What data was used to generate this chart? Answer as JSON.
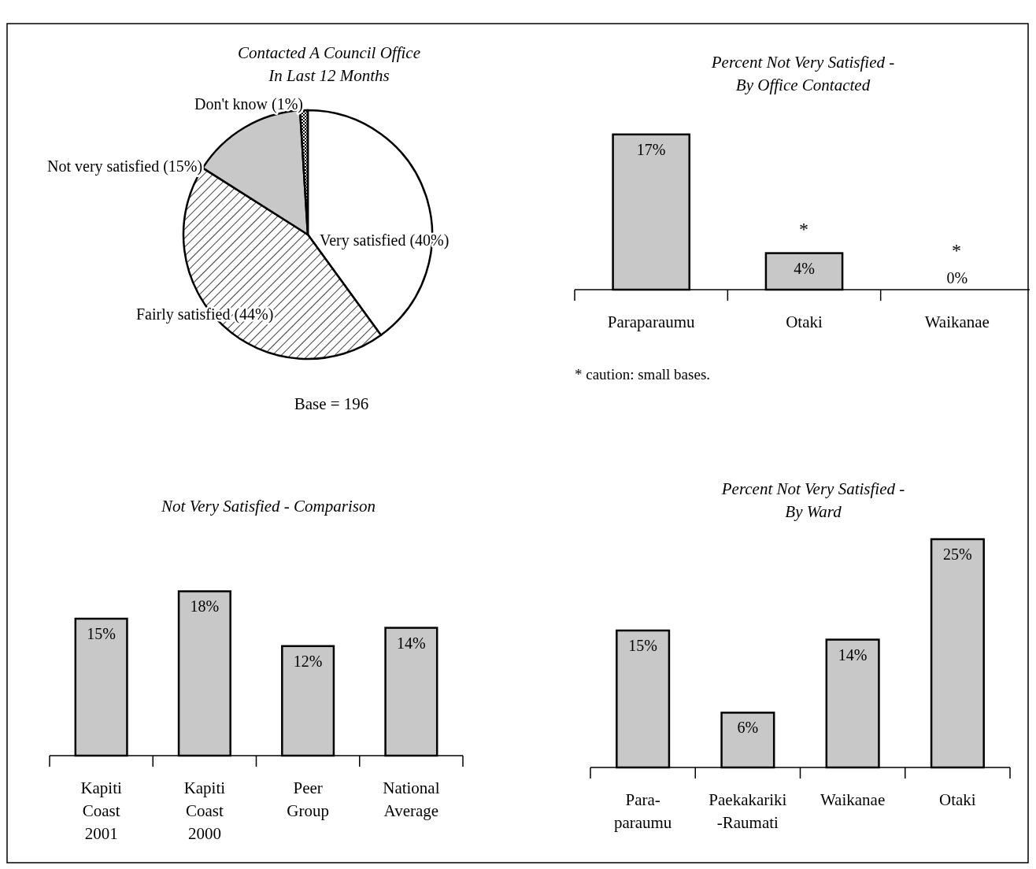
{
  "chart_data": [
    {
      "type": "pie",
      "title": "Contacted A Council Office\nIn Last 12 Months",
      "categories": [
        "Very satisfied",
        "Fairly satisfied",
        "Not very satisfied",
        "Don't know"
      ],
      "values": [
        40,
        44,
        15,
        1
      ],
      "value_labels": [
        "(40%)",
        "(44%)",
        "(15%)",
        "(1%)"
      ],
      "colors": [
        "#ffffff",
        "#000000",
        "#c8c8c8",
        "#000000"
      ],
      "annotations": [
        "Base = 196"
      ]
    },
    {
      "type": "bar",
      "title": "Percent Not Very Satisfied -\nBy Office Contacted",
      "categories": [
        "Paraparaumu",
        "Otaki",
        "Waikanae"
      ],
      "values": [
        17,
        4,
        0
      ],
      "value_labels": [
        "17%",
        "4%",
        "0%"
      ],
      "color": "#c8c8c8",
      "annotations": [
        "*",
        "*",
        "* caution:  small bases."
      ]
    },
    {
      "type": "bar",
      "title": "Not Very Satisfied - Comparison",
      "categories": [
        "Kapiti\nCoast\n2001",
        "Kapiti\nCoast\n2000",
        "Peer\nGroup",
        "National\nAverage"
      ],
      "values": [
        15,
        18,
        12,
        14
      ],
      "value_labels": [
        "15%",
        "18%",
        "12%",
        "14%"
      ],
      "color": "#c8c8c8"
    },
    {
      "type": "bar",
      "title": "Percent Not Very Satisfied -\nBy Ward",
      "categories": [
        "Para-\nparaumu",
        "Paekakariki\n-Raumati",
        "Waikanae",
        "Otaki"
      ],
      "values": [
        15,
        6,
        14,
        25
      ],
      "value_labels": [
        "15%",
        "6%",
        "14%",
        "25%"
      ],
      "color": "#c8c8c8"
    }
  ]
}
